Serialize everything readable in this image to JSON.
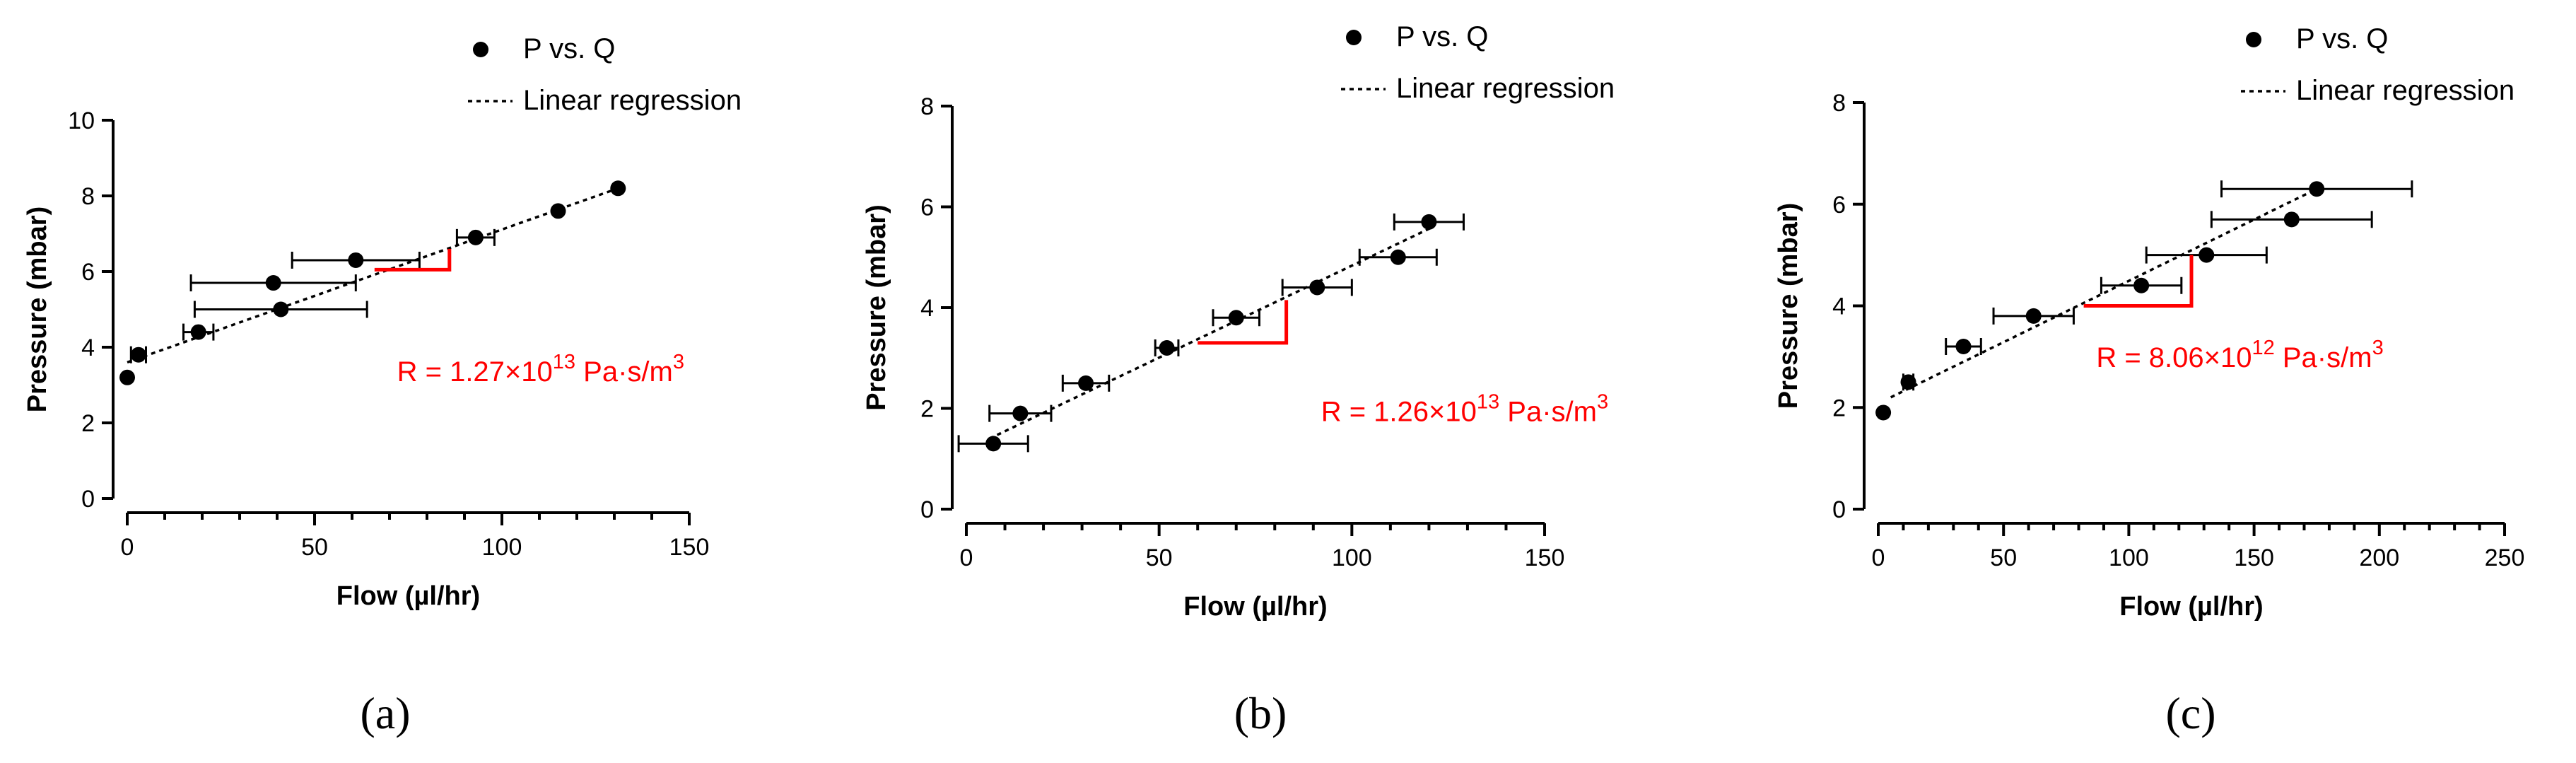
{
  "figure_panels": [
    "(a)",
    "(b)",
    "(c)"
  ],
  "chart_data": [
    {
      "type": "scatter",
      "panel_label": "(a)",
      "xlabel": "Flow (µl/hr)",
      "ylabel": "Pressure (mbar)",
      "xlim": [
        0,
        150
      ],
      "ylim": [
        0,
        10
      ],
      "xticks": [
        0,
        50,
        100,
        150
      ],
      "yticks": [
        0,
        2,
        4,
        6,
        8,
        10
      ],
      "x_minor_step": 10,
      "legend": {
        "placement": "top-right",
        "entries": [
          {
            "label": "P vs. Q",
            "marker": "dot"
          },
          {
            "label": "Linear regression",
            "marker": "dotted-line"
          }
        ]
      },
      "series": [
        {
          "name": "P vs. Q",
          "points": [
            {
              "x": 0,
              "y": 3.2,
              "xerr": 0
            },
            {
              "x": 3,
              "y": 3.8,
              "xerr": 2
            },
            {
              "x": 19,
              "y": 4.4,
              "xerr": 4
            },
            {
              "x": 39,
              "y": 5.7,
              "xerr": 22
            },
            {
              "x": 41,
              "y": 5.0,
              "xerr": 23
            },
            {
              "x": 61,
              "y": 6.3,
              "xerr": 17
            },
            {
              "x": 93,
              "y": 6.9,
              "xerr": 5
            },
            {
              "x": 115,
              "y": 7.6,
              "xerr": 0
            },
            {
              "x": 131,
              "y": 8.2,
              "xerr": 0
            }
          ]
        },
        {
          "name": "Linear regression",
          "x_range": [
            0,
            131
          ],
          "y_start": 3.6,
          "y_end": 8.2
        }
      ],
      "slope_marker": {
        "x0": 66,
        "x1": 86,
        "y0": 6.05,
        "y1": 6.6
      },
      "annotation": {
        "prefix": "R = 1.27×10",
        "exponent": "13",
        "unit": " Pa·s/m",
        "unit_exp": "3",
        "anchor": {
          "x": 72,
          "y": 3.1
        }
      }
    },
    {
      "type": "scatter",
      "panel_label": "(b)",
      "xlabel": "Flow (µl/hr)",
      "ylabel": "Pressure (mbar)",
      "xlim": [
        0,
        150
      ],
      "ylim": [
        0,
        8
      ],
      "xticks": [
        0,
        50,
        100,
        150
      ],
      "yticks": [
        0,
        2,
        4,
        6,
        8
      ],
      "x_minor_step": 10,
      "legend": {
        "placement": "top-right",
        "entries": [
          {
            "label": "P vs. Q",
            "marker": "dot"
          },
          {
            "label": "Linear regression",
            "marker": "dotted-line"
          }
        ]
      },
      "series": [
        {
          "name": "P vs. Q",
          "points": [
            {
              "x": 7,
              "y": 1.3,
              "xerr": 9
            },
            {
              "x": 14,
              "y": 1.9,
              "xerr": 8
            },
            {
              "x": 31,
              "y": 2.5,
              "xerr": 6
            },
            {
              "x": 52,
              "y": 3.2,
              "xerr": 3
            },
            {
              "x": 70,
              "y": 3.8,
              "xerr": 6
            },
            {
              "x": 91,
              "y": 4.4,
              "xerr": 9
            },
            {
              "x": 112,
              "y": 5.0,
              "xerr": 10
            },
            {
              "x": 120,
              "y": 5.7,
              "xerr": 9
            }
          ]
        },
        {
          "name": "Linear regression",
          "x_range": [
            6,
            121
          ],
          "y_start": 1.4,
          "y_end": 5.6
        }
      ],
      "slope_marker": {
        "x0": 60,
        "x1": 83,
        "y0": 3.3,
        "y1": 4.15
      },
      "annotation": {
        "prefix": "R = 1.26×10",
        "exponent": "13",
        "unit": " Pa·s/m",
        "unit_exp": "3",
        "anchor": {
          "x": 92,
          "y": 1.75
        }
      }
    },
    {
      "type": "scatter",
      "panel_label": "(c)",
      "xlabel": "Flow (µl/hr)",
      "ylabel": "Pressure (mbar)",
      "xlim": [
        0,
        250
      ],
      "ylim": [
        0,
        8
      ],
      "xticks": [
        0,
        50,
        100,
        150,
        200,
        250
      ],
      "yticks": [
        0,
        2,
        4,
        6,
        8
      ],
      "x_minor_step": 10,
      "legend": {
        "placement": "top-right",
        "entries": [
          {
            "label": "P vs. Q",
            "marker": "dot"
          },
          {
            "label": "Linear regression",
            "marker": "dotted-line"
          }
        ]
      },
      "series": [
        {
          "name": "P vs. Q",
          "points": [
            {
              "x": 2,
              "y": 1.9,
              "xerr": 0
            },
            {
              "x": 12,
              "y": 2.5,
              "xerr": 2
            },
            {
              "x": 34,
              "y": 3.2,
              "xerr": 7
            },
            {
              "x": 62,
              "y": 3.8,
              "xerr": 16
            },
            {
              "x": 105,
              "y": 4.4,
              "xerr": 16
            },
            {
              "x": 131,
              "y": 5.0,
              "xerr": 24
            },
            {
              "x": 165,
              "y": 5.7,
              "xerr": 32
            },
            {
              "x": 175,
              "y": 6.3,
              "xerr": 38
            }
          ]
        },
        {
          "name": "Linear regression",
          "x_range": [
            5,
            175
          ],
          "y_start": 2.2,
          "y_end": 6.3
        }
      ],
      "slope_marker": {
        "x0": 82,
        "x1": 125,
        "y0": 4.0,
        "y1": 5.0
      },
      "annotation": {
        "prefix": "R = 8.06×10",
        "exponent": "12",
        "unit": " Pa·s/m",
        "unit_exp": "3",
        "anchor": {
          "x": 87,
          "y": 2.8
        }
      }
    }
  ]
}
